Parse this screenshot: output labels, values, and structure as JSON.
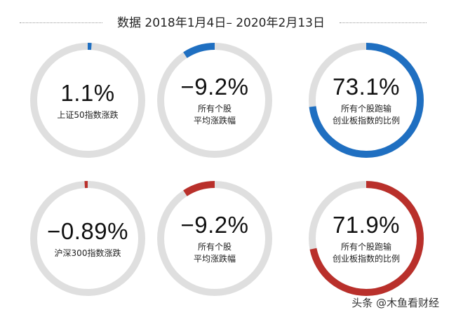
{
  "title": "数据 2018年1月4日– 2020年2月13日",
  "footer": "头条 @木鱼看财经",
  "colors": {
    "track": "#dfdfdf",
    "blue": "#1f6fc1",
    "red": "#b9302b"
  },
  "chart_data": [
    {
      "type": "pie",
      "value_text": "1.1%",
      "value": 1.1,
      "labels": [
        "上证50指数涨跌"
      ],
      "color": "blue"
    },
    {
      "type": "pie",
      "value_text": "-9.2%",
      "value": -9.2,
      "labels": [
        "所有个股",
        "平均涨跌幅"
      ],
      "color": "blue"
    },
    {
      "type": "pie",
      "value_text": "73.1%",
      "value": 73.1,
      "labels": [
        "所有个股跑输",
        "创业板指数的比例"
      ],
      "color": "blue"
    },
    {
      "type": "pie",
      "value_text": "-0.89%",
      "value": -0.89,
      "labels": [
        "沪深300指数涨跌"
      ],
      "color": "red"
    },
    {
      "type": "pie",
      "value_text": "-9.2%",
      "value": -9.2,
      "labels": [
        "所有个股",
        "平均涨跌幅"
      ],
      "color": "red"
    },
    {
      "type": "pie",
      "value_text": "71.9%",
      "value": 71.9,
      "labels": [
        "所有个股跑输",
        "创业板指数的比例"
      ],
      "color": "red"
    }
  ]
}
